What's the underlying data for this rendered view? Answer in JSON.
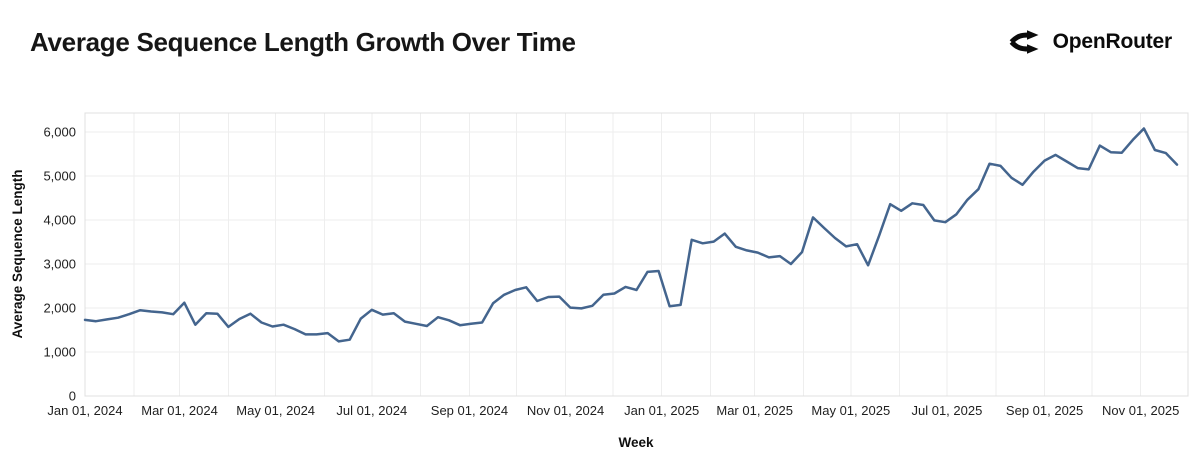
{
  "header": {
    "title": "Average Sequence Length Growth Over Time",
    "logo": {
      "icon": "openrouter-fork-icon",
      "text": "OpenRouter"
    }
  },
  "colors": {
    "series_line": "#44658e",
    "grid": "#eeeeee",
    "plot_border": "#e0e0e0",
    "tick_text": "#1f1f1f",
    "title_text": "#161616"
  },
  "chart_data": {
    "type": "line",
    "title": "Average Sequence Length Growth Over Time",
    "xlabel": "Week",
    "ylabel": "Average Sequence Length",
    "x_axis_range": [
      "2024-01-01",
      "2025-12-01"
    ],
    "ylim": [
      0,
      6430
    ],
    "grid": true,
    "legend_position": "none",
    "x_tick_labels": [
      "Jan 01, 2024",
      "Mar 01, 2024",
      "May 01, 2024",
      "Jul 01, 2024",
      "Sep 01, 2024",
      "Nov 01, 2024",
      "Jan 01, 2025",
      "Mar 01, 2025",
      "May 01, 2025",
      "Jul 01, 2025",
      "Sep 01, 2025",
      "Nov 01, 2025"
    ],
    "y_ticks": [
      0,
      1000,
      2000,
      3000,
      4000,
      5000,
      6000
    ],
    "y_tick_labels": [
      "0",
      "1,000",
      "2,000",
      "3,000",
      "4,000",
      "5,000",
      "6,000"
    ],
    "series": [
      {
        "name": "Average Sequence Length",
        "interval": "weekly",
        "x": [
          "2024-01-01",
          "2024-01-08",
          "2024-01-15",
          "2024-01-22",
          "2024-01-29",
          "2024-02-05",
          "2024-02-12",
          "2024-02-19",
          "2024-02-26",
          "2024-03-04",
          "2024-03-11",
          "2024-03-18",
          "2024-03-25",
          "2024-04-01",
          "2024-04-08",
          "2024-04-15",
          "2024-04-22",
          "2024-04-29",
          "2024-05-06",
          "2024-05-13",
          "2024-05-20",
          "2024-05-27",
          "2024-06-03",
          "2024-06-10",
          "2024-06-17",
          "2024-06-24",
          "2024-07-01",
          "2024-07-08",
          "2024-07-15",
          "2024-07-22",
          "2024-07-29",
          "2024-08-05",
          "2024-08-12",
          "2024-08-19",
          "2024-08-26",
          "2024-09-02",
          "2024-09-09",
          "2024-09-16",
          "2024-09-23",
          "2024-09-30",
          "2024-10-07",
          "2024-10-14",
          "2024-10-21",
          "2024-10-28",
          "2024-11-04",
          "2024-11-11",
          "2024-11-18",
          "2024-11-25",
          "2024-12-02",
          "2024-12-09",
          "2024-12-16",
          "2024-12-23",
          "2024-12-30",
          "2025-01-06",
          "2025-01-13",
          "2025-01-20",
          "2025-01-27",
          "2025-02-03",
          "2025-02-10",
          "2025-02-17",
          "2025-02-24",
          "2025-03-03",
          "2025-03-10",
          "2025-03-17",
          "2025-03-24",
          "2025-03-31",
          "2025-04-07",
          "2025-04-14",
          "2025-04-21",
          "2025-04-28",
          "2025-05-05",
          "2025-05-12",
          "2025-05-19",
          "2025-05-26",
          "2025-06-02",
          "2025-06-09",
          "2025-06-16",
          "2025-06-23",
          "2025-06-30",
          "2025-07-07",
          "2025-07-14",
          "2025-07-21",
          "2025-07-28",
          "2025-08-04",
          "2025-08-11",
          "2025-08-18",
          "2025-08-25",
          "2025-09-01",
          "2025-09-08",
          "2025-09-15",
          "2025-09-22",
          "2025-09-29",
          "2025-10-06",
          "2025-10-13",
          "2025-10-20",
          "2025-10-27",
          "2025-11-03",
          "2025-11-10",
          "2025-11-17",
          "2025-11-24"
        ],
        "values": [
          1730,
          1700,
          1740,
          1780,
          1860,
          1950,
          1920,
          1900,
          1860,
          2120,
          1620,
          1880,
          1870,
          1570,
          1750,
          1870,
          1670,
          1580,
          1620,
          1520,
          1400,
          1400,
          1430,
          1240,
          1280,
          1760,
          1960,
          1850,
          1880,
          1690,
          1640,
          1590,
          1790,
          1720,
          1610,
          1640,
          1670,
          2110,
          2300,
          2410,
          2470,
          2160,
          2250,
          2260,
          2010,
          1990,
          2050,
          2300,
          2330,
          2480,
          2410,
          2820,
          2840,
          2040,
          2070,
          3550,
          3470,
          3510,
          3690,
          3390,
          3310,
          3260,
          3150,
          3180,
          3000,
          3270,
          4060,
          3820,
          3590,
          3400,
          3450,
          2970,
          3650,
          4360,
          4210,
          4380,
          4340,
          3990,
          3950,
          4130,
          4460,
          4700,
          5280,
          5230,
          4960,
          4800,
          5100,
          5350,
          5480,
          5330,
          5180,
          5150,
          5690,
          5540,
          5530,
          5820,
          6080,
          5590,
          5520,
          5260
        ]
      }
    ]
  }
}
